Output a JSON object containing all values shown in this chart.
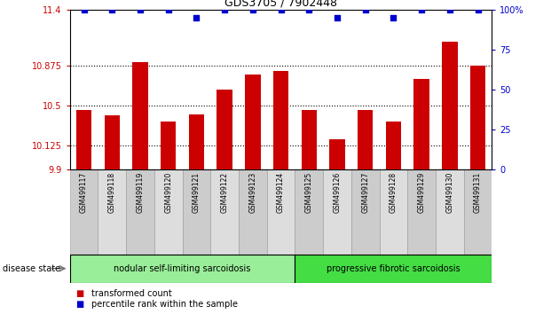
{
  "title": "GDS3705 / 7902448",
  "samples": [
    "GSM499117",
    "GSM499118",
    "GSM499119",
    "GSM499120",
    "GSM499121",
    "GSM499122",
    "GSM499123",
    "GSM499124",
    "GSM499125",
    "GSM499126",
    "GSM499127",
    "GSM499128",
    "GSM499129",
    "GSM499130",
    "GSM499131"
  ],
  "bar_values": [
    10.46,
    10.41,
    10.91,
    10.35,
    10.42,
    10.65,
    10.79,
    10.82,
    10.46,
    10.18,
    10.46,
    10.35,
    10.75,
    11.1,
    10.875
  ],
  "percentile_values": [
    100,
    100,
    100,
    100,
    95,
    100,
    100,
    100,
    100,
    95,
    100,
    95,
    100,
    100,
    100
  ],
  "bar_color": "#cc0000",
  "percentile_color": "#0000cc",
  "ymin": 9.9,
  "ymax": 11.4,
  "yticks": [
    9.9,
    10.125,
    10.5,
    10.875,
    11.4
  ],
  "ytick_labels": [
    "9.9",
    "10.125",
    "10.5",
    "10.875",
    "11.4"
  ],
  "right_yticks": [
    0,
    25,
    50,
    75,
    100
  ],
  "right_ytick_labels": [
    "0",
    "25",
    "50",
    "75",
    "100%"
  ],
  "hlines": [
    10.125,
    10.5,
    10.875
  ],
  "group1_label": "nodular self-limiting sarcoidosis",
  "group2_label": "progressive fibrotic sarcoidosis",
  "group1_count": 8,
  "group2_count": 7,
  "disease_state_label": "disease state",
  "legend1_label": "transformed count",
  "legend2_label": "percentile rank within the sample",
  "background_color": "#ffffff",
  "plot_bg": "#ffffff",
  "group_bg1": "#99ee99",
  "group_bg2": "#44dd44",
  "sample_col_colors": [
    "#cccccc",
    "#dddddd"
  ]
}
